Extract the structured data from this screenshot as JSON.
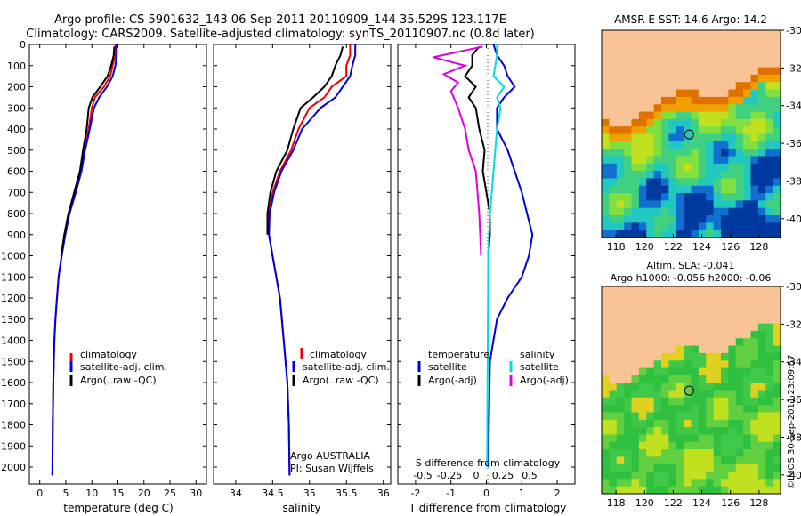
{
  "header": {
    "line1": "Argo profile: CS 5901632_143 06-Sep-2011 20110909_144 35.529S 123.117E",
    "line2": "Climatology: CARS2009. Satellite-adjusted climatology: synTS_20110907.nc (0.8d later)"
  },
  "colors": {
    "climatology": "#ee0000",
    "satellite": "#0000dd",
    "argo": "#000000",
    "satellite_salinity": "#00dddd",
    "argo_salinity": "#dd00dd",
    "land": "#f9c495"
  },
  "chart_data": [
    {
      "type": "line",
      "id": "temperature",
      "xlabel": "temperature (deg C)",
      "xlim": [
        -2,
        32
      ],
      "ylim": [
        2080,
        0
      ],
      "xticks": [
        0,
        5,
        10,
        15,
        20,
        25,
        30
      ],
      "yticks": [
        0,
        100,
        200,
        300,
        400,
        500,
        600,
        700,
        800,
        900,
        1000,
        1100,
        1200,
        1300,
        1400,
        1500,
        1600,
        1700,
        1800,
        1900,
        2000
      ],
      "legend": [
        "climatology",
        "satellite-adj. clim.",
        "Argo(..raw -QC)"
      ],
      "series": [
        {
          "name": "climatology",
          "x": [
            14.5,
            14.5,
            14.0,
            13.5,
            12.3,
            10.6,
            10.0,
            9.4,
            8.5,
            7.9,
            6.8,
            5.6,
            4.8,
            4.2,
            3.6,
            3.3,
            3.0,
            2.8,
            2.6,
            2.5,
            2.4
          ],
          "y": [
            0,
            50,
            100,
            150,
            200,
            250,
            300,
            400,
            500,
            600,
            700,
            800,
            900,
            1000,
            1100,
            1200,
            1300,
            1400,
            1600,
            1800,
            2040
          ]
        },
        {
          "name": "satellite-adj. clim.",
          "x": [
            14.8,
            14.8,
            14.5,
            14.0,
            12.9,
            11.4,
            10.4,
            9.6,
            8.7,
            8.0,
            6.9,
            5.7,
            4.9,
            4.2,
            3.6,
            3.3,
            3.0,
            2.8,
            2.6,
            2.5,
            2.4
          ],
          "y": [
            0,
            50,
            100,
            150,
            200,
            250,
            300,
            400,
            500,
            600,
            700,
            800,
            900,
            1000,
            1100,
            1200,
            1300,
            1400,
            1600,
            1800,
            2040
          ]
        },
        {
          "name": "Argo(..raw -QC)",
          "x": [
            14.3,
            14.2,
            13.7,
            13.0,
            11.6,
            10.1,
            9.4,
            9.0,
            8.3,
            7.7,
            6.6,
            5.5,
            4.7,
            4.1
          ],
          "y": [
            10,
            50,
            100,
            150,
            200,
            250,
            300,
            400,
            500,
            600,
            700,
            800,
            900,
            1000
          ]
        }
      ]
    },
    {
      "type": "line",
      "id": "salinity",
      "xlabel": "salinity",
      "xlim": [
        33.7,
        36.1
      ],
      "ylim": [
        2080,
        0
      ],
      "xticks": [
        34,
        34.5,
        35,
        35.5,
        36
      ],
      "legend": [
        "climatology",
        "satellite-adj. clim.",
        "Argo(..raw -QC)"
      ],
      "annotation": [
        "Argo AUSTRALIA",
        "PI: Susan Wijffels"
      ],
      "series": [
        {
          "name": "climatology",
          "x": [
            35.55,
            35.55,
            35.5,
            35.5,
            35.3,
            35.2,
            35.0,
            34.85,
            34.75,
            34.6,
            34.5,
            34.45,
            34.45,
            34.5,
            34.6,
            34.65,
            34.7,
            34.72,
            34.73
          ],
          "y": [
            0,
            50,
            100,
            150,
            200,
            250,
            300,
            400,
            500,
            600,
            700,
            800,
            900,
            1000,
            1200,
            1400,
            1600,
            1800,
            2040
          ]
        },
        {
          "name": "satellite-adj. clim.",
          "x": [
            35.62,
            35.62,
            35.58,
            35.55,
            35.45,
            35.35,
            35.15,
            34.9,
            34.78,
            34.62,
            34.52,
            34.46,
            34.45,
            34.5,
            34.6,
            34.65,
            34.7,
            34.72,
            34.73
          ],
          "y": [
            0,
            50,
            100,
            150,
            200,
            250,
            300,
            400,
            500,
            600,
            700,
            800,
            900,
            1000,
            1200,
            1400,
            1600,
            1800,
            2040
          ]
        },
        {
          "name": "Argo(..raw -QC)",
          "x": [
            35.45,
            35.42,
            35.35,
            35.3,
            35.2,
            35.05,
            34.88,
            34.78,
            34.7,
            34.55,
            34.47,
            34.43,
            34.43
          ],
          "y": [
            10,
            50,
            100,
            150,
            200,
            250,
            300,
            400,
            500,
            600,
            700,
            800,
            900
          ]
        }
      ]
    },
    {
      "type": "line",
      "id": "difference",
      "xlabel": "T difference from climatology",
      "xlabel_top": "S difference from climatology",
      "xlim": [
        -2.5,
        2.5
      ],
      "ylim": [
        2080,
        0
      ],
      "xticks": [
        -2,
        -1,
        0,
        1,
        2
      ],
      "xticks_top": [
        "-0.5",
        "-0.25",
        "0",
        "0.25",
        "0.5"
      ],
      "legend_titles": [
        "temperature",
        "salinity"
      ],
      "legend": [
        "satellite",
        "Argo(-adj)",
        "satellite",
        "Argo(-adj)"
      ],
      "series": [
        {
          "name": "temperature satellite",
          "x": [
            0.2,
            0.3,
            0.5,
            0.6,
            0.8,
            0.5,
            0.3,
            0.3,
            0.3,
            0.6,
            0.8,
            1.0,
            1.3,
            1.2,
            1.0,
            0.6,
            0.3,
            0.1,
            0.05
          ],
          "y": [
            0,
            50,
            100,
            150,
            200,
            250,
            300,
            350,
            400,
            500,
            600,
            700,
            900,
            1000,
            1100,
            1200,
            1300,
            1500,
            2000
          ]
        },
        {
          "name": "Argo temperature",
          "x": [
            -0.2,
            -0.4,
            -0.4,
            -0.6,
            -0.3,
            -0.5,
            -0.3,
            -0.2,
            -0.05,
            -0.1,
            0.0,
            0.1,
            0.1,
            0.05
          ],
          "y": [
            10,
            50,
            100,
            150,
            200,
            250,
            300,
            400,
            500,
            600,
            700,
            800,
            900,
            1000
          ]
        },
        {
          "name": "salinity satellite",
          "x": [
            0.3,
            0.3,
            0.25,
            0.2,
            0.5,
            0.3,
            0.4,
            0.3,
            0.2,
            0.1,
            0.05,
            0.02
          ],
          "y": [
            0,
            50,
            100,
            150,
            200,
            250,
            300,
            400,
            600,
            800,
            1000,
            2000
          ]
        },
        {
          "name": "Argo salinity",
          "x": [
            -0.1,
            -1.5,
            -0.6,
            -1.2,
            -0.8,
            -1.0,
            -0.8,
            -0.6,
            -0.5,
            -0.3,
            -0.2,
            -0.15
          ],
          "y": [
            10,
            60,
            100,
            140,
            180,
            220,
            300,
            400,
            500,
            600,
            800,
            1000
          ]
        }
      ]
    },
    {
      "type": "heatmap",
      "id": "sst_map",
      "title": "AMSR-E SST: 14.6 Argo: 14.2",
      "xticks": [
        118,
        120,
        122,
        124,
        126,
        128
      ],
      "yticks": [
        -30,
        -32,
        -34,
        -36,
        -38,
        -40
      ],
      "xlim": [
        117,
        129.5
      ],
      "ylim": [
        -41,
        -30
      ],
      "argo_position": {
        "lon": 123.117,
        "lat": -35.529
      }
    },
    {
      "type": "heatmap",
      "id": "sla_map",
      "title": "Altim. SLA: -0.041",
      "subtitle": "Argo h1000: -0.056 h2000: -0.06",
      "xticks": [
        118,
        120,
        122,
        124,
        126,
        128
      ],
      "yticks": [
        -30,
        -32,
        -34,
        -36,
        -38,
        -40
      ],
      "xlim": [
        117,
        129.5
      ],
      "ylim": [
        -41,
        -30
      ],
      "argo_position": {
        "lon": 123.117,
        "lat": -35.529
      }
    }
  ],
  "credit": "©IMOS 30-Sep-2011 23:09:57"
}
